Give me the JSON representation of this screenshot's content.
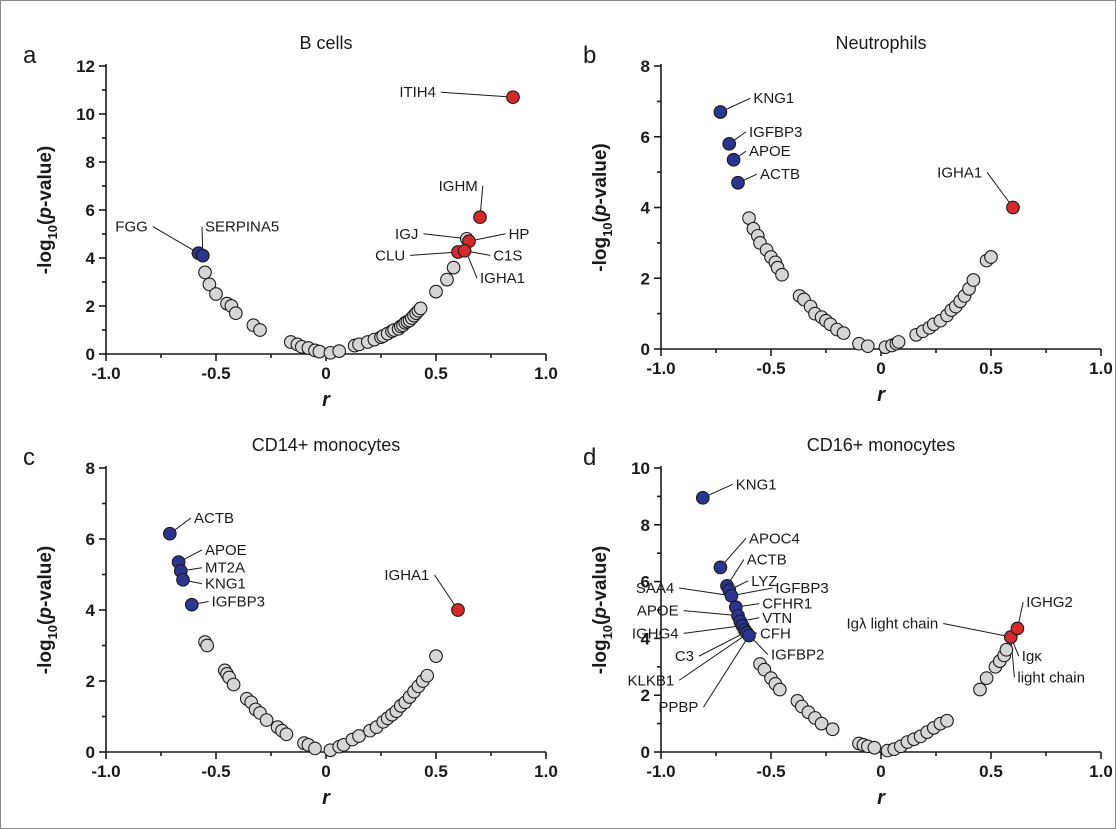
{
  "colors": {
    "up": "#d42a2a",
    "down": "#2b3590",
    "ns": "#d6d6d6",
    "stroke": "#1a1a1a"
  },
  "axis_labels": {
    "ylabel_prefix": "-log",
    "ylabel_sub": "10",
    "ylabel_paren_open": "(",
    "ylabel_p": "p",
    "ylabel_suffix": "-value)",
    "xlabel": "r"
  },
  "chart_data": [
    {
      "panel": "a",
      "title": "B cells",
      "type": "scatter",
      "xlim": [
        -1.0,
        1.0
      ],
      "ylim": [
        0,
        12
      ],
      "xticks": [
        "-1.0",
        "-0.5",
        "0",
        "0.5",
        "1.0"
      ],
      "yticks": [
        "0",
        "2",
        "4",
        "6",
        "8",
        "10",
        "12"
      ],
      "points": [
        [
          -0.58,
          4.2,
          "down"
        ],
        [
          -0.56,
          4.1,
          "down"
        ],
        [
          -0.55,
          3.4,
          "ns"
        ],
        [
          -0.53,
          2.9,
          "ns"
        ],
        [
          -0.5,
          2.5,
          "ns"
        ],
        [
          -0.45,
          2.1,
          "ns"
        ],
        [
          -0.43,
          2.0,
          "ns"
        ],
        [
          -0.41,
          1.7,
          "ns"
        ],
        [
          -0.33,
          1.2,
          "ns"
        ],
        [
          -0.3,
          1.0,
          "ns"
        ],
        [
          -0.16,
          0.5,
          "ns"
        ],
        [
          -0.13,
          0.4,
          "ns"
        ],
        [
          -0.11,
          0.3,
          "ns"
        ],
        [
          -0.08,
          0.25,
          "ns"
        ],
        [
          -0.05,
          0.15,
          "ns"
        ],
        [
          -0.03,
          0.1,
          "ns"
        ],
        [
          0.02,
          0.05,
          "ns"
        ],
        [
          0.06,
          0.12,
          "ns"
        ],
        [
          0.13,
          0.35,
          "ns"
        ],
        [
          0.15,
          0.4,
          "ns"
        ],
        [
          0.19,
          0.5,
          "ns"
        ],
        [
          0.22,
          0.6,
          "ns"
        ],
        [
          0.25,
          0.7,
          "ns"
        ],
        [
          0.26,
          0.75,
          "ns"
        ],
        [
          0.28,
          0.85,
          "ns"
        ],
        [
          0.3,
          0.95,
          "ns"
        ],
        [
          0.31,
          1.0,
          "ns"
        ],
        [
          0.33,
          1.05,
          "ns"
        ],
        [
          0.34,
          1.15,
          "ns"
        ],
        [
          0.35,
          1.2,
          "ns"
        ],
        [
          0.36,
          1.3,
          "ns"
        ],
        [
          0.37,
          1.35,
          "ns"
        ],
        [
          0.38,
          1.4,
          "ns"
        ],
        [
          0.39,
          1.5,
          "ns"
        ],
        [
          0.4,
          1.6,
          "ns"
        ],
        [
          0.41,
          1.7,
          "ns"
        ],
        [
          0.42,
          1.8,
          "ns"
        ],
        [
          0.43,
          1.9,
          "ns"
        ],
        [
          0.5,
          2.6,
          "ns"
        ],
        [
          0.55,
          3.1,
          "ns"
        ],
        [
          0.58,
          3.6,
          "ns"
        ],
        [
          0.64,
          4.8,
          "ns"
        ],
        [
          0.85,
          10.7,
          "up"
        ],
        [
          0.7,
          5.7,
          "up"
        ],
        [
          0.65,
          4.7,
          "up"
        ],
        [
          0.6,
          4.25,
          "up"
        ],
        [
          0.63,
          4.3,
          "up"
        ]
      ],
      "labels": [
        {
          "text": "ITIH4",
          "x": 0.85,
          "y": 10.7,
          "lx": 0.5,
          "ly": 10.7
        },
        {
          "text": "IGHM",
          "x": 0.7,
          "y": 5.7,
          "lx": 0.69,
          "ly": 6.8
        },
        {
          "text": "FGG",
          "x": -0.58,
          "y": 4.2,
          "lx": -0.81,
          "ly": 5.1
        },
        {
          "text": "SERPINA5",
          "x": -0.56,
          "y": 4.1,
          "lx": -0.55,
          "ly": 5.1
        },
        {
          "text": "IGJ",
          "x": 0.64,
          "y": 4.8,
          "lx": 0.42,
          "ly": 4.8
        },
        {
          "text": "HP",
          "x": 0.65,
          "y": 4.7,
          "lx": 0.83,
          "ly": 4.8
        },
        {
          "text": "CLU",
          "x": 0.6,
          "y": 4.25,
          "lx": 0.36,
          "ly": 3.9
        },
        {
          "text": "C1S",
          "x": 0.63,
          "y": 4.3,
          "lx": 0.76,
          "ly": 3.9
        },
        {
          "text": "IGHA1",
          "x": 0.64,
          "y": 4.2,
          "lx": 0.7,
          "ly": 2.95
        }
      ]
    },
    {
      "panel": "b",
      "title": "Neutrophils",
      "type": "scatter",
      "xlim": [
        -1.0,
        1.0
      ],
      "ylim": [
        0,
        8
      ],
      "xticks": [
        "-1.0",
        "-0.5",
        "0",
        "0.5",
        "1.0"
      ],
      "yticks": [
        "0",
        "2",
        "4",
        "6",
        "8"
      ],
      "points": [
        [
          -0.73,
          6.7,
          "down"
        ],
        [
          -0.69,
          5.8,
          "down"
        ],
        [
          -0.67,
          5.35,
          "down"
        ],
        [
          -0.65,
          4.7,
          "down"
        ],
        [
          -0.6,
          3.7,
          "ns"
        ],
        [
          -0.58,
          3.4,
          "ns"
        ],
        [
          -0.56,
          3.2,
          "ns"
        ],
        [
          -0.55,
          3.0,
          "ns"
        ],
        [
          -0.52,
          2.8,
          "ns"
        ],
        [
          -0.5,
          2.6,
          "ns"
        ],
        [
          -0.48,
          2.45,
          "ns"
        ],
        [
          -0.47,
          2.3,
          "ns"
        ],
        [
          -0.45,
          2.1,
          "ns"
        ],
        [
          -0.37,
          1.5,
          "ns"
        ],
        [
          -0.35,
          1.4,
          "ns"
        ],
        [
          -0.32,
          1.2,
          "ns"
        ],
        [
          -0.3,
          1.0,
          "ns"
        ],
        [
          -0.27,
          0.9,
          "ns"
        ],
        [
          -0.25,
          0.8,
          "ns"
        ],
        [
          -0.23,
          0.7,
          "ns"
        ],
        [
          -0.2,
          0.55,
          "ns"
        ],
        [
          -0.17,
          0.45,
          "ns"
        ],
        [
          -0.1,
          0.15,
          "ns"
        ],
        [
          -0.06,
          0.08,
          "ns"
        ],
        [
          0.02,
          0.05,
          "ns"
        ],
        [
          0.05,
          0.1,
          "ns"
        ],
        [
          0.07,
          0.15,
          "ns"
        ],
        [
          0.08,
          0.2,
          "ns"
        ],
        [
          0.16,
          0.4,
          "ns"
        ],
        [
          0.19,
          0.5,
          "ns"
        ],
        [
          0.22,
          0.6,
          "ns"
        ],
        [
          0.24,
          0.7,
          "ns"
        ],
        [
          0.27,
          0.8,
          "ns"
        ],
        [
          0.3,
          0.95,
          "ns"
        ],
        [
          0.32,
          1.1,
          "ns"
        ],
        [
          0.34,
          1.2,
          "ns"
        ],
        [
          0.36,
          1.35,
          "ns"
        ],
        [
          0.38,
          1.5,
          "ns"
        ],
        [
          0.4,
          1.7,
          "ns"
        ],
        [
          0.42,
          1.95,
          "ns"
        ],
        [
          0.48,
          2.5,
          "ns"
        ],
        [
          0.5,
          2.6,
          "ns"
        ],
        [
          0.6,
          4.0,
          "up"
        ]
      ],
      "labels": [
        {
          "text": "KNG1",
          "x": -0.73,
          "y": 6.7,
          "lx": -0.58,
          "ly": 6.95
        },
        {
          "text": "IGFBP3",
          "x": -0.69,
          "y": 5.8,
          "lx": -0.6,
          "ly": 6.0
        },
        {
          "text": "APOE",
          "x": -0.67,
          "y": 5.35,
          "lx": -0.6,
          "ly": 5.45
        },
        {
          "text": "ACTB",
          "x": -0.65,
          "y": 4.7,
          "lx": -0.55,
          "ly": 4.8
        },
        {
          "text": "IGHA1",
          "x": 0.6,
          "y": 4.0,
          "lx": 0.46,
          "ly": 4.85
        }
      ]
    },
    {
      "panel": "c",
      "title": "CD14+ monocytes",
      "type": "scatter",
      "xlim": [
        -1.0,
        1.0
      ],
      "ylim": [
        0,
        8
      ],
      "xticks": [
        "-1.0",
        "-0.5",
        "0",
        "0.5",
        "1.0"
      ],
      "yticks": [
        "0",
        "2",
        "4",
        "6",
        "8"
      ],
      "points": [
        [
          -0.71,
          6.15,
          "down"
        ],
        [
          -0.67,
          5.35,
          "down"
        ],
        [
          -0.66,
          5.1,
          "down"
        ],
        [
          -0.65,
          4.85,
          "down"
        ],
        [
          -0.61,
          4.15,
          "down"
        ],
        [
          -0.55,
          3.1,
          "ns"
        ],
        [
          -0.54,
          3.0,
          "ns"
        ],
        [
          -0.46,
          2.3,
          "ns"
        ],
        [
          -0.45,
          2.2,
          "ns"
        ],
        [
          -0.44,
          2.1,
          "ns"
        ],
        [
          -0.42,
          1.9,
          "ns"
        ],
        [
          -0.36,
          1.5,
          "ns"
        ],
        [
          -0.34,
          1.4,
          "ns"
        ],
        [
          -0.32,
          1.2,
          "ns"
        ],
        [
          -0.3,
          1.1,
          "ns"
        ],
        [
          -0.27,
          0.9,
          "ns"
        ],
        [
          -0.22,
          0.7,
          "ns"
        ],
        [
          -0.2,
          0.6,
          "ns"
        ],
        [
          -0.18,
          0.5,
          "ns"
        ],
        [
          -0.1,
          0.25,
          "ns"
        ],
        [
          -0.08,
          0.2,
          "ns"
        ],
        [
          -0.05,
          0.1,
          "ns"
        ],
        [
          0.02,
          0.05,
          "ns"
        ],
        [
          0.06,
          0.15,
          "ns"
        ],
        [
          0.08,
          0.2,
          "ns"
        ],
        [
          0.12,
          0.35,
          "ns"
        ],
        [
          0.15,
          0.45,
          "ns"
        ],
        [
          0.2,
          0.6,
          "ns"
        ],
        [
          0.23,
          0.7,
          "ns"
        ],
        [
          0.26,
          0.85,
          "ns"
        ],
        [
          0.28,
          0.95,
          "ns"
        ],
        [
          0.3,
          1.05,
          "ns"
        ],
        [
          0.32,
          1.15,
          "ns"
        ],
        [
          0.34,
          1.3,
          "ns"
        ],
        [
          0.36,
          1.4,
          "ns"
        ],
        [
          0.38,
          1.55,
          "ns"
        ],
        [
          0.4,
          1.7,
          "ns"
        ],
        [
          0.42,
          1.85,
          "ns"
        ],
        [
          0.44,
          2.0,
          "ns"
        ],
        [
          0.46,
          2.15,
          "ns"
        ],
        [
          0.5,
          2.7,
          "ns"
        ],
        [
          0.6,
          4.0,
          "up"
        ]
      ],
      "labels": [
        {
          "text": "ACTB",
          "x": -0.71,
          "y": 6.15,
          "lx": -0.6,
          "ly": 6.45
        },
        {
          "text": "APOE",
          "x": -0.67,
          "y": 5.35,
          "lx": -0.55,
          "ly": 5.55
        },
        {
          "text": "MT2A",
          "x": -0.66,
          "y": 5.1,
          "lx": -0.55,
          "ly": 5.05
        },
        {
          "text": "KNG1",
          "x": -0.65,
          "y": 4.85,
          "lx": -0.55,
          "ly": 4.6
        },
        {
          "text": "IGFBP3",
          "x": -0.61,
          "y": 4.15,
          "lx": -0.52,
          "ly": 4.1
        },
        {
          "text": "IGHA1",
          "x": 0.6,
          "y": 4.0,
          "lx": 0.47,
          "ly": 4.85
        }
      ]
    },
    {
      "panel": "d",
      "title": "CD16+ monocytes",
      "type": "scatter",
      "xlim": [
        -1.0,
        1.0
      ],
      "ylim": [
        0,
        10
      ],
      "xticks": [
        "-1.0",
        "-0.5",
        "0",
        "0.5",
        "1.0"
      ],
      "yticks": [
        "0",
        "2",
        "4",
        "6",
        "8",
        "10"
      ],
      "points": [
        [
          -0.81,
          8.95,
          "down"
        ],
        [
          -0.73,
          6.5,
          "down"
        ],
        [
          -0.7,
          5.85,
          "down"
        ],
        [
          -0.69,
          5.7,
          "down"
        ],
        [
          -0.68,
          5.5,
          "down"
        ],
        [
          -0.66,
          5.1,
          "down"
        ],
        [
          -0.65,
          4.8,
          "down"
        ],
        [
          -0.64,
          4.6,
          "down"
        ],
        [
          -0.63,
          4.45,
          "down"
        ],
        [
          -0.62,
          4.3,
          "down"
        ],
        [
          -0.61,
          4.2,
          "down"
        ],
        [
          -0.6,
          4.1,
          "down"
        ],
        [
          -0.55,
          3.1,
          "ns"
        ],
        [
          -0.53,
          2.9,
          "ns"
        ],
        [
          -0.5,
          2.6,
          "ns"
        ],
        [
          -0.48,
          2.4,
          "ns"
        ],
        [
          -0.46,
          2.2,
          "ns"
        ],
        [
          -0.38,
          1.8,
          "ns"
        ],
        [
          -0.36,
          1.6,
          "ns"
        ],
        [
          -0.33,
          1.4,
          "ns"
        ],
        [
          -0.3,
          1.2,
          "ns"
        ],
        [
          -0.27,
          1.0,
          "ns"
        ],
        [
          -0.22,
          0.8,
          "ns"
        ],
        [
          -0.1,
          0.3,
          "ns"
        ],
        [
          -0.08,
          0.25,
          "ns"
        ],
        [
          -0.06,
          0.2,
          "ns"
        ],
        [
          -0.03,
          0.15,
          "ns"
        ],
        [
          0.03,
          0.05,
          "ns"
        ],
        [
          0.06,
          0.1,
          "ns"
        ],
        [
          0.09,
          0.2,
          "ns"
        ],
        [
          0.12,
          0.35,
          "ns"
        ],
        [
          0.15,
          0.45,
          "ns"
        ],
        [
          0.18,
          0.55,
          "ns"
        ],
        [
          0.21,
          0.7,
          "ns"
        ],
        [
          0.24,
          0.85,
          "ns"
        ],
        [
          0.27,
          1.0,
          "ns"
        ],
        [
          0.3,
          1.1,
          "ns"
        ],
        [
          0.45,
          2.2,
          "ns"
        ],
        [
          0.48,
          2.6,
          "ns"
        ],
        [
          0.52,
          3.0,
          "ns"
        ],
        [
          0.54,
          3.2,
          "ns"
        ],
        [
          0.56,
          3.4,
          "ns"
        ],
        [
          0.57,
          3.6,
          "ns"
        ],
        [
          0.59,
          4.05,
          "up"
        ],
        [
          0.62,
          4.35,
          "up"
        ]
      ],
      "labels": [
        {
          "text": "KNG1",
          "x": -0.81,
          "y": 8.95,
          "lx": -0.66,
          "ly": 9.25
        },
        {
          "text": "APOC4",
          "x": -0.73,
          "y": 6.5,
          "lx": -0.6,
          "ly": 7.35
        },
        {
          "text": "ACTB",
          "x": -0.7,
          "y": 5.85,
          "lx": -0.61,
          "ly": 6.6
        },
        {
          "text": "LYZ",
          "x": -0.69,
          "y": 5.7,
          "lx": -0.59,
          "ly": 5.85
        },
        {
          "text": "SAA4",
          "x": -0.68,
          "y": 5.5,
          "lx": -0.94,
          "ly": 5.6
        },
        {
          "text": "IGFBP3",
          "x": -0.68,
          "y": 5.5,
          "lx": -0.48,
          "ly": 5.6
        },
        {
          "text": "CFHR1",
          "x": -0.66,
          "y": 5.1,
          "lx": -0.54,
          "ly": 5.05
        },
        {
          "text": "APOE",
          "x": -0.65,
          "y": 4.8,
          "lx": -0.92,
          "ly": 4.8
        },
        {
          "text": "VTN",
          "x": -0.64,
          "y": 4.6,
          "lx": -0.54,
          "ly": 4.55
        },
        {
          "text": "IGHG4",
          "x": -0.63,
          "y": 4.45,
          "lx": -0.92,
          "ly": 4.0
        },
        {
          "text": "CFH",
          "x": -0.62,
          "y": 4.3,
          "lx": -0.55,
          "ly": 4.0
        },
        {
          "text": "C3",
          "x": -0.62,
          "y": 4.2,
          "lx": -0.85,
          "ly": 3.2
        },
        {
          "text": "IGFBP2",
          "x": -0.61,
          "y": 4.2,
          "lx": -0.5,
          "ly": 3.25
        },
        {
          "text": "KLKB1",
          "x": -0.61,
          "y": 4.15,
          "lx": -0.94,
          "ly": 2.35
        },
        {
          "text": "PPBP",
          "x": -0.6,
          "y": 4.1,
          "lx": -0.83,
          "ly": 1.4
        },
        {
          "text": "Igλ light chain",
          "x": 0.59,
          "y": 4.05,
          "lx": 0.26,
          "ly": 4.35
        },
        {
          "text": "IGHG2",
          "x": 0.62,
          "y": 4.35,
          "lx": 0.66,
          "ly": 5.1
        },
        {
          "text": "Igκ",
          "x": 0.59,
          "y": 4.05,
          "lx": 0.64,
          "ly": 3.2
        },
        {
          "text": "light chain",
          "x": 0.59,
          "y": 4.05,
          "lx": 0.62,
          "ly": 2.45
        }
      ]
    }
  ]
}
